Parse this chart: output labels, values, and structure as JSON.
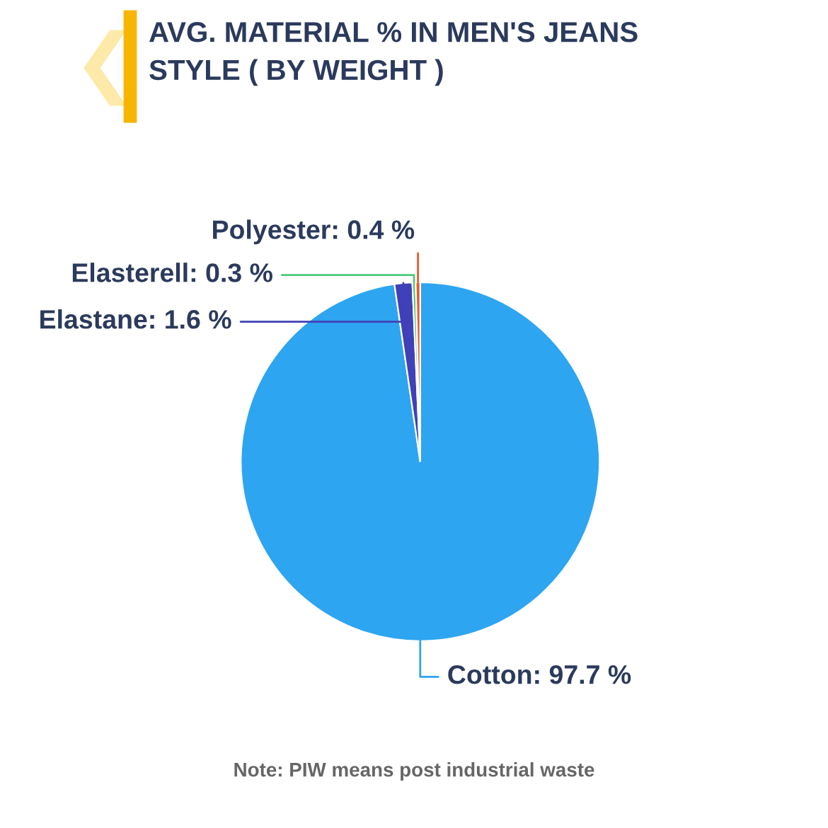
{
  "chart_data": {
    "type": "pie",
    "title": "AVG. MATERIAL % IN MEN'S JEANS\nSTYLE ( BY WEIGHT )",
    "categories": [
      "Cotton",
      "Elastane",
      "Elasterell",
      "Polyester"
    ],
    "values": [
      97.7,
      1.6,
      0.3,
      0.4
    ],
    "value_labels": [
      "97.7 %",
      "1.6 %",
      "0.3 %",
      "0.4 %"
    ],
    "colors": [
      "#2ea5f0",
      "#4040b8",
      "#4cc97a",
      "#f05a28"
    ],
    "annotations": [
      "Note: PIW means post industrial waste"
    ]
  }
}
